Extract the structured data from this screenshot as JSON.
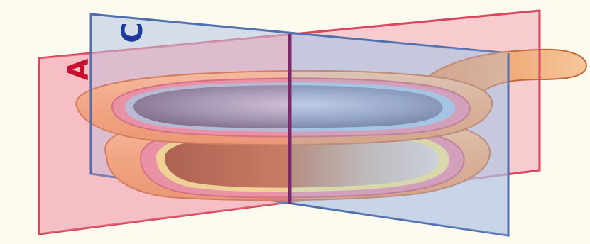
{
  "labels": {
    "plane_a": "A",
    "plane_c": "C"
  },
  "colors": {
    "background": "#fdfbef",
    "plane_a_fill": "#f4a6b4",
    "plane_a_edge": "#d8465c",
    "plane_c_fill": "#b4c4e4",
    "plane_c_edge": "#4f6fae",
    "label_a": "#c8102e",
    "label_c": "#1b3a9a",
    "outer_wall": "#f2b07c",
    "inner_rim_pink": "#e58aa0",
    "upper_cavity": "#6c7ea6",
    "lower_cavity": "#b06440",
    "yellow_rim": "#eee58a"
  }
}
